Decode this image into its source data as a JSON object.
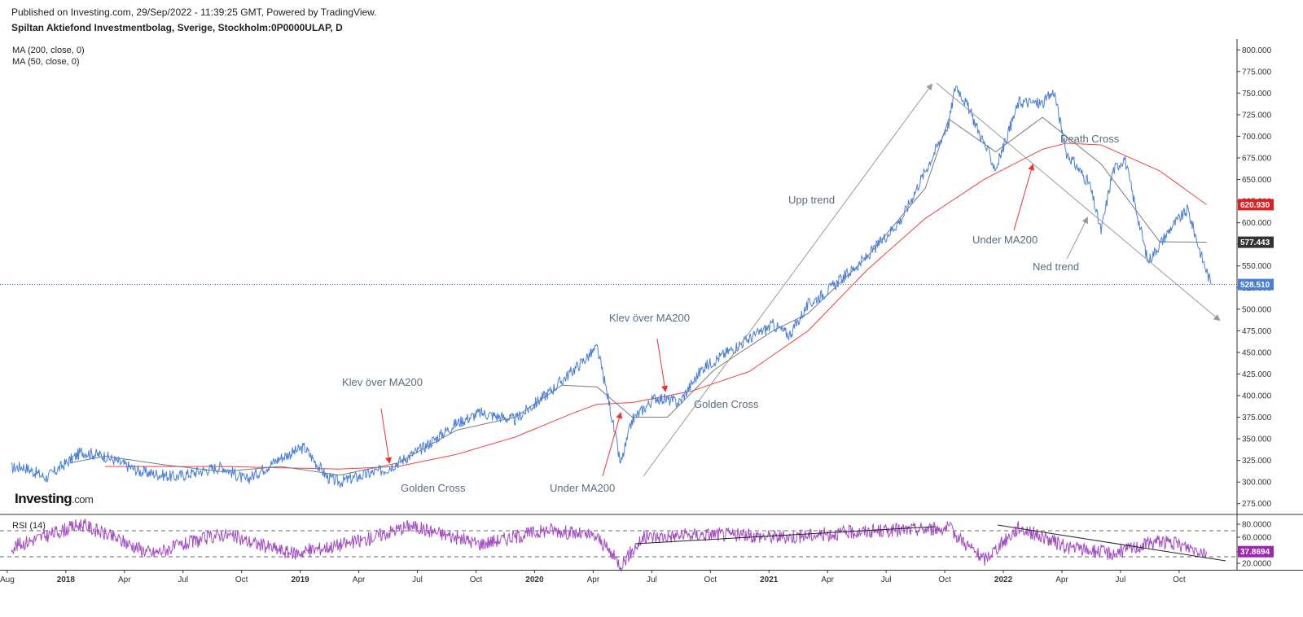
{
  "header": {
    "published": "Published on Investing.com, 29/Sep/2022 - 11:39:25 GMT, Powered by TradingView.",
    "instrument": "Spiltan Aktiefond Investmentbolag, Sverige, Stockholm:0P0000ULAP, D"
  },
  "indicators": {
    "ma200_label": "MA (200, close, 0)",
    "ma50_label": "MA (50, close, 0)",
    "rsi_label": "RSI (14)"
  },
  "logo": {
    "main": "Investing",
    "suffix": ".com"
  },
  "colors": {
    "price": "#4a7fd8",
    "ma200": "#f04040",
    "ma50": "#7a7a7a",
    "rsi": "#a14ac4",
    "annotation_arrow": "#f03030",
    "trendline": "#999999",
    "last_price_badge": "#4a7fd8",
    "ma200_badge": "#e02020",
    "ma50_badge": "#333333",
    "rsi_badge": "#9c27b0"
  },
  "chart_data": {
    "type": "line",
    "title": "Spiltan Aktiefond Investmentbolag, Sverige, Stockholm:0P0000ULAP, D",
    "x_tick_labels": [
      "Aug",
      "2018",
      "Apr",
      "Jul",
      "Oct",
      "2019",
      "Apr",
      "Jul",
      "Oct",
      "2020",
      "Apr",
      "Jul",
      "Oct",
      "2021",
      "Apr",
      "Jul",
      "Oct",
      "2022",
      "Apr",
      "Jul",
      "Oct"
    ],
    "x_range": [
      "2017-08",
      "2022-10"
    ],
    "price_axis": {
      "ylim": [
        262.5,
        812.5
      ],
      "tick_labels": [
        "800.000",
        "775.000",
        "750.000",
        "725.000",
        "700.000",
        "675.000",
        "650.000",
        "625.000",
        "600.000",
        "575.000",
        "550.000",
        "525.000",
        "500.000",
        "475.000",
        "450.000",
        "425.000",
        "400.000",
        "375.000",
        "350.000",
        "325.000",
        "300.000",
        "275.000"
      ]
    },
    "last_values": {
      "price": "528.510",
      "ma200": "620.930",
      "ma50": "577.443",
      "rsi": "37.8694"
    },
    "series": [
      {
        "name": "MA (200, close, 0)",
        "values": [
          [
            2018.0,
            318
          ],
          [
            2018.5,
            318
          ],
          [
            2019.0,
            315
          ],
          [
            2019.25,
            318
          ],
          [
            2019.5,
            332
          ],
          [
            2019.75,
            352
          ],
          [
            2020.0,
            380
          ],
          [
            2020.1,
            390
          ],
          [
            2020.25,
            392
          ],
          [
            2020.5,
            405
          ],
          [
            2020.75,
            428
          ],
          [
            2021.0,
            475
          ],
          [
            2021.25,
            545
          ],
          [
            2021.5,
            605
          ],
          [
            2021.75,
            650
          ],
          [
            2022.0,
            685
          ],
          [
            2022.1,
            692
          ],
          [
            2022.25,
            690
          ],
          [
            2022.5,
            660
          ],
          [
            2022.7,
            620.93
          ]
        ]
      },
      {
        "name": "MA (50, close, 0)",
        "values": [
          [
            2017.85,
            322
          ],
          [
            2018.0,
            330
          ],
          [
            2018.25,
            320
          ],
          [
            2018.5,
            312
          ],
          [
            2018.75,
            318
          ],
          [
            2019.0,
            308
          ],
          [
            2019.25,
            322
          ],
          [
            2019.5,
            360
          ],
          [
            2019.75,
            375
          ],
          [
            2019.95,
            412
          ],
          [
            2020.1,
            410
          ],
          [
            2020.25,
            375
          ],
          [
            2020.4,
            375
          ],
          [
            2020.6,
            430
          ],
          [
            2020.85,
            475
          ],
          [
            2021.0,
            495
          ],
          [
            2021.25,
            560
          ],
          [
            2021.5,
            640
          ],
          [
            2021.6,
            720
          ],
          [
            2021.8,
            682
          ],
          [
            2022.0,
            722
          ],
          [
            2022.25,
            668
          ],
          [
            2022.5,
            578
          ],
          [
            2022.7,
            577.443
          ]
        ]
      },
      {
        "name": "Price",
        "values": [
          [
            2017.6,
            316
          ],
          [
            2017.65,
            318
          ],
          [
            2017.75,
            305
          ],
          [
            2017.9,
            335
          ],
          [
            2018.0,
            330
          ],
          [
            2018.15,
            312
          ],
          [
            2018.3,
            306
          ],
          [
            2018.5,
            318
          ],
          [
            2018.6,
            302
          ],
          [
            2018.75,
            328
          ],
          [
            2018.85,
            340
          ],
          [
            2018.95,
            305
          ],
          [
            2019.0,
            300
          ],
          [
            2019.2,
            315
          ],
          [
            2019.35,
            338
          ],
          [
            2019.5,
            368
          ],
          [
            2019.6,
            380
          ],
          [
            2019.75,
            372
          ],
          [
            2019.9,
            405
          ],
          [
            2020.1,
            455
          ],
          [
            2020.15,
            393
          ],
          [
            2020.2,
            320
          ],
          [
            2020.25,
            372
          ],
          [
            2020.35,
            398
          ],
          [
            2020.45,
            392
          ],
          [
            2020.55,
            432
          ],
          [
            2020.7,
            458
          ],
          [
            2020.85,
            482
          ],
          [
            2020.92,
            470
          ],
          [
            2021.0,
            505
          ],
          [
            2021.1,
            525
          ],
          [
            2021.25,
            560
          ],
          [
            2021.4,
            605
          ],
          [
            2021.5,
            660
          ],
          [
            2021.6,
            715
          ],
          [
            2021.63,
            760
          ],
          [
            2021.68,
            735
          ],
          [
            2021.8,
            662
          ],
          [
            2021.9,
            740
          ],
          [
            2022.0,
            738
          ],
          [
            2022.05,
            752
          ],
          [
            2022.1,
            682
          ],
          [
            2022.2,
            645
          ],
          [
            2022.25,
            590
          ],
          [
            2022.3,
            660
          ],
          [
            2022.35,
            675
          ],
          [
            2022.45,
            555
          ],
          [
            2022.55,
            595
          ],
          [
            2022.62,
            615
          ],
          [
            2022.68,
            560
          ],
          [
            2022.72,
            528.51
          ]
        ]
      },
      {
        "name": "RSI (14)",
        "values": [
          [
            2017.6,
            45
          ],
          [
            2017.9,
            80
          ],
          [
            2018.2,
            35
          ],
          [
            2018.5,
            65
          ],
          [
            2018.8,
            35
          ],
          [
            2019.1,
            55
          ],
          [
            2019.3,
            78
          ],
          [
            2019.6,
            50
          ],
          [
            2019.9,
            72
          ],
          [
            2020.1,
            60
          ],
          [
            2020.2,
            18
          ],
          [
            2020.3,
            60
          ],
          [
            2020.6,
            65
          ],
          [
            2020.9,
            60
          ],
          [
            2021.2,
            68
          ],
          [
            2021.6,
            74
          ],
          [
            2021.75,
            25
          ],
          [
            2021.9,
            75
          ],
          [
            2022.1,
            45
          ],
          [
            2022.3,
            35
          ],
          [
            2022.5,
            55
          ],
          [
            2022.7,
            37.8694
          ]
        ]
      }
    ],
    "rsi_axis": {
      "ylim": [
        10,
        90
      ],
      "tick_labels": [
        "80.0000",
        "60.0000",
        "37.8694",
        "20.0000"
      ],
      "bands": [
        70,
        30
      ]
    },
    "annotations": [
      "Upp trend",
      "Death Cross",
      "Under MA200",
      "Ned trend",
      "Klev över MA200",
      "Golden Cross",
      "Klev över MA200",
      "Golden Cross",
      "Under MA200"
    ]
  }
}
